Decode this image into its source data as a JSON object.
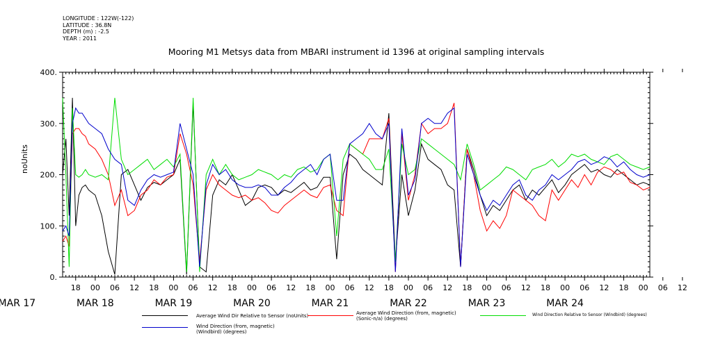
{
  "meta": {
    "longitude": "LONGITUDE : 122W(-122)",
    "latitude": "LATITUDE : 36.8N",
    "depth": "DEPTH (m) : -2.5",
    "year": "YEAR : 2011"
  },
  "chart_data": {
    "type": "line",
    "title": "Mooring M1 Metsys data from MBARI instrument id 1396 at original sampling intervals",
    "xlabel": "",
    "ylabel": "noUnits",
    "ylim": [
      0,
      400
    ],
    "yticks": [
      "0.",
      "100.",
      "200.",
      "300.",
      "400."
    ],
    "ytick_values": [
      0,
      100,
      200,
      300,
      400
    ],
    "x_hour_ticks": [
      "18",
      "00",
      "06",
      "12",
      "18",
      "00",
      "06",
      "12",
      "18",
      "00",
      "06",
      "12",
      "18",
      "00",
      "06",
      "12",
      "18",
      "00",
      "06",
      "12",
      "18",
      "00",
      "06",
      "12",
      "18",
      "00",
      "06",
      "12",
      "18",
      "00",
      "06",
      "12"
    ],
    "x_day_labels": [
      "MAR 17",
      "MAR 18",
      "MAR 19",
      "MAR 20",
      "MAR 21",
      "MAR 22",
      "MAR 23",
      "MAR 24"
    ],
    "x_range_hours": [
      14,
      194
    ],
    "grid": false,
    "legend_placement": "bottom",
    "series": [
      {
        "name": "Average Wind Dir Relative to Sensor (noUnits)",
        "color": "#000000",
        "x": [
          14,
          15,
          16,
          17,
          18,
          19,
          20,
          21,
          22,
          24,
          26,
          28,
          30,
          32,
          34,
          36,
          38,
          40,
          42,
          44,
          46,
          48,
          50,
          52,
          54,
          56,
          58,
          60,
          62,
          64,
          66,
          68,
          70,
          72,
          74,
          76,
          78,
          80,
          82,
          84,
          86,
          88,
          90,
          92,
          94,
          96,
          98,
          100,
          102,
          104,
          106,
          108,
          110,
          112,
          114,
          116,
          118,
          120,
          122,
          124,
          126,
          128,
          130,
          132,
          134,
          136,
          138,
          140,
          142,
          144,
          146,
          148,
          150,
          152,
          154,
          156,
          158,
          160,
          162,
          164,
          166,
          168,
          170,
          172,
          174,
          176,
          178,
          180,
          182,
          184,
          186,
          188,
          190,
          192,
          194
        ],
        "values": [
          200,
          270,
          120,
          350,
          100,
          160,
          175,
          180,
          170,
          160,
          120,
          50,
          5,
          200,
          210,
          180,
          150,
          175,
          185,
          180,
          190,
          200,
          230,
          5,
          340,
          20,
          10,
          160,
          190,
          180,
          200,
          170,
          140,
          150,
          175,
          180,
          175,
          160,
          170,
          165,
          175,
          185,
          170,
          175,
          195,
          195,
          35,
          200,
          240,
          230,
          210,
          200,
          190,
          180,
          320,
          30,
          200,
          120,
          170,
          260,
          230,
          220,
          210,
          180,
          170,
          20,
          250,
          210,
          160,
          120,
          140,
          130,
          150,
          170,
          180,
          150,
          170,
          160,
          175,
          190,
          165,
          180,
          200,
          210,
          220,
          205,
          210,
          200,
          195,
          210,
          200,
          190,
          180,
          185,
          180
        ]
      },
      {
        "name": "Average Wind Direction (from, magnetic) (Sonic-n/a) (degrees)",
        "color": "#ff0000",
        "x": [
          14,
          15,
          16,
          17,
          18,
          19,
          20,
          21,
          22,
          24,
          26,
          28,
          30,
          32,
          34,
          36,
          38,
          40,
          42,
          44,
          46,
          48,
          50,
          52,
          54,
          56,
          58,
          60,
          62,
          64,
          66,
          68,
          70,
          72,
          74,
          76,
          78,
          80,
          82,
          84,
          86,
          88,
          90,
          92,
          94,
          96,
          98,
          100,
          102,
          104,
          106,
          108,
          110,
          112,
          114,
          116,
          118,
          120,
          122,
          124,
          126,
          128,
          130,
          132,
          134,
          136,
          138,
          140,
          142,
          144,
          146,
          148,
          150,
          152,
          154,
          156,
          158,
          160,
          162,
          164,
          166,
          168,
          170,
          172,
          174,
          176,
          178,
          180,
          182,
          184,
          186,
          188,
          190,
          192,
          194
        ],
        "values": [
          70,
          80,
          60,
          280,
          290,
          290,
          280,
          275,
          260,
          250,
          230,
          200,
          140,
          170,
          120,
          130,
          160,
          170,
          190,
          180,
          195,
          200,
          280,
          240,
          180,
          30,
          170,
          200,
          180,
          170,
          160,
          155,
          160,
          150,
          155,
          145,
          130,
          125,
          140,
          150,
          160,
          170,
          160,
          155,
          175,
          180,
          130,
          120,
          260,
          250,
          240,
          270,
          270,
          270,
          310,
          10,
          280,
          150,
          200,
          300,
          280,
          290,
          290,
          300,
          340,
          20,
          250,
          200,
          130,
          90,
          110,
          95,
          120,
          170,
          160,
          150,
          140,
          120,
          110,
          170,
          150,
          170,
          190,
          175,
          200,
          180,
          205,
          215,
          210,
          200,
          205,
          185,
          180,
          170,
          175
        ]
      },
      {
        "name": "Wind Direction Relative to Sensor (Windbird) (degrees)",
        "color": "#00dd00",
        "x": [
          14,
          15,
          16,
          17,
          18,
          19,
          20,
          21,
          22,
          24,
          26,
          28,
          30,
          32,
          34,
          36,
          38,
          40,
          42,
          44,
          46,
          48,
          50,
          52,
          54,
          56,
          58,
          60,
          62,
          64,
          66,
          68,
          70,
          72,
          74,
          76,
          78,
          80,
          82,
          84,
          86,
          88,
          90,
          92,
          94,
          96,
          98,
          100,
          102,
          104,
          106,
          108,
          110,
          112,
          114,
          116,
          118,
          120,
          122,
          124,
          126,
          128,
          130,
          132,
          134,
          136,
          138,
          140,
          142,
          144,
          146,
          148,
          150,
          152,
          154,
          156,
          158,
          160,
          162,
          164,
          166,
          168,
          170,
          172,
          174,
          176,
          178,
          180,
          182,
          184,
          186,
          188,
          190,
          192,
          194
        ],
        "values": [
          350,
          200,
          20,
          330,
          200,
          195,
          200,
          210,
          200,
          195,
          200,
          190,
          350,
          230,
          200,
          210,
          220,
          230,
          210,
          220,
          230,
          215,
          240,
          10,
          350,
          10,
          200,
          230,
          200,
          220,
          200,
          190,
          195,
          200,
          210,
          205,
          200,
          190,
          200,
          195,
          210,
          215,
          205,
          210,
          230,
          240,
          80,
          230,
          260,
          250,
          240,
          230,
          210,
          210,
          250,
          30,
          260,
          200,
          210,
          270,
          260,
          250,
          240,
          230,
          220,
          190,
          260,
          220,
          170,
          180,
          190,
          200,
          215,
          210,
          200,
          190,
          210,
          215,
          220,
          230,
          215,
          225,
          240,
          235,
          240,
          230,
          225,
          220,
          235,
          240,
          230,
          220,
          215,
          210,
          215
        ]
      },
      {
        "name": "Wind Direction (from, magnetic) (Windbird) (degrees)",
        "color": "#0000cc",
        "x": [
          14,
          15,
          16,
          17,
          18,
          19,
          20,
          21,
          22,
          24,
          26,
          28,
          30,
          32,
          34,
          36,
          38,
          40,
          42,
          44,
          46,
          48,
          50,
          52,
          54,
          56,
          58,
          60,
          62,
          64,
          66,
          68,
          70,
          72,
          74,
          76,
          78,
          80,
          82,
          84,
          86,
          88,
          90,
          92,
          94,
          96,
          98,
          100,
          102,
          104,
          106,
          108,
          110,
          112,
          114,
          116,
          118,
          120,
          122,
          124,
          126,
          128,
          130,
          132,
          134,
          136,
          138,
          140,
          142,
          144,
          146,
          148,
          150,
          152,
          154,
          156,
          158,
          160,
          162,
          164,
          166,
          168,
          170,
          172,
          174,
          176,
          178,
          180,
          182,
          184,
          186,
          188,
          190,
          192,
          194
        ],
        "values": [
          90,
          100,
          80,
          300,
          330,
          320,
          320,
          310,
          300,
          290,
          280,
          250,
          230,
          220,
          150,
          140,
          170,
          190,
          200,
          195,
          200,
          205,
          300,
          250,
          200,
          20,
          180,
          220,
          200,
          210,
          190,
          180,
          175,
          175,
          180,
          175,
          160,
          160,
          175,
          185,
          200,
          210,
          220,
          200,
          230,
          240,
          150,
          150,
          260,
          270,
          280,
          300,
          280,
          270,
          300,
          10,
          290,
          160,
          190,
          300,
          310,
          300,
          300,
          320,
          330,
          20,
          240,
          200,
          160,
          130,
          150,
          140,
          160,
          180,
          190,
          160,
          150,
          170,
          180,
          200,
          190,
          200,
          210,
          225,
          230,
          220,
          225,
          235,
          230,
          215,
          225,
          210,
          200,
          195,
          200
        ]
      }
    ]
  }
}
